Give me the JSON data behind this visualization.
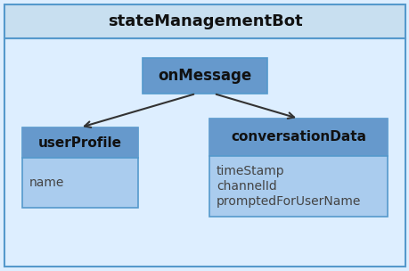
{
  "background_color": "#ddeeff",
  "outer_border_color": "#5599cc",
  "box_fill_color": "#aaccee",
  "box_header_color": "#6699cc",
  "title": "stateManagementBot",
  "title_bg": "#c8dff0",
  "title_fontsize": 13,
  "onMessage_label": "onMessage",
  "userProfile_label": "userProfile",
  "userProfile_attrs": [
    "name"
  ],
  "conversationData_label": "conversationData",
  "conversationData_attrs": [
    "timeStamp",
    "channelId",
    "promptedForUserName"
  ],
  "text_color": "#222222",
  "header_text_color": "#111111",
  "attr_text_color": "#444444",
  "arrow_color": "#333333"
}
